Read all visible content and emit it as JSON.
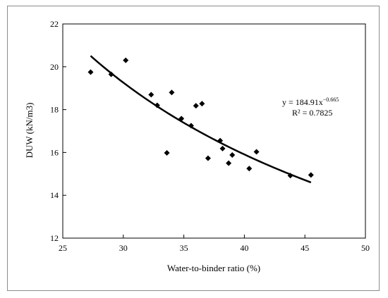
{
  "chart_data": {
    "type": "scatter",
    "xlabel": "Water-to-binder ratio  (%)",
    "ylabel": "DUW (kN/m3)",
    "xlim": [
      25,
      50
    ],
    "ylim": [
      12,
      22
    ],
    "xticks": [
      25,
      30,
      35,
      40,
      45,
      50
    ],
    "yticks": [
      12,
      14,
      16,
      18,
      20,
      22
    ],
    "grid": false,
    "marker": "diamond",
    "marker_color": "#000000",
    "points": [
      {
        "x": 27.3,
        "y": 19.75
      },
      {
        "x": 29.0,
        "y": 19.65
      },
      {
        "x": 30.2,
        "y": 20.3
      },
      {
        "x": 32.3,
        "y": 18.7
      },
      {
        "x": 32.8,
        "y": 18.2
      },
      {
        "x": 33.6,
        "y": 15.98
      },
      {
        "x": 34.0,
        "y": 18.8
      },
      {
        "x": 34.8,
        "y": 17.58
      },
      {
        "x": 35.6,
        "y": 17.25
      },
      {
        "x": 36.0,
        "y": 18.18
      },
      {
        "x": 36.5,
        "y": 18.28
      },
      {
        "x": 37.0,
        "y": 15.73
      },
      {
        "x": 38.0,
        "y": 16.55
      },
      {
        "x": 38.2,
        "y": 16.18
      },
      {
        "x": 38.7,
        "y": 15.5
      },
      {
        "x": 39.0,
        "y": 15.88
      },
      {
        "x": 40.4,
        "y": 15.25
      },
      {
        "x": 41.0,
        "y": 16.03
      },
      {
        "x": 43.8,
        "y": 14.92
      },
      {
        "x": 45.5,
        "y": 14.95
      }
    ],
    "trendline": {
      "type": "power",
      "coefficient": 184.91,
      "exponent": -0.665,
      "x_range": [
        27.3,
        45.5
      ],
      "color": "#000000"
    },
    "equation_text": "y = 184.91x",
    "equation_exponent": "−0.665",
    "r2_text": "R² = 0.7825"
  }
}
